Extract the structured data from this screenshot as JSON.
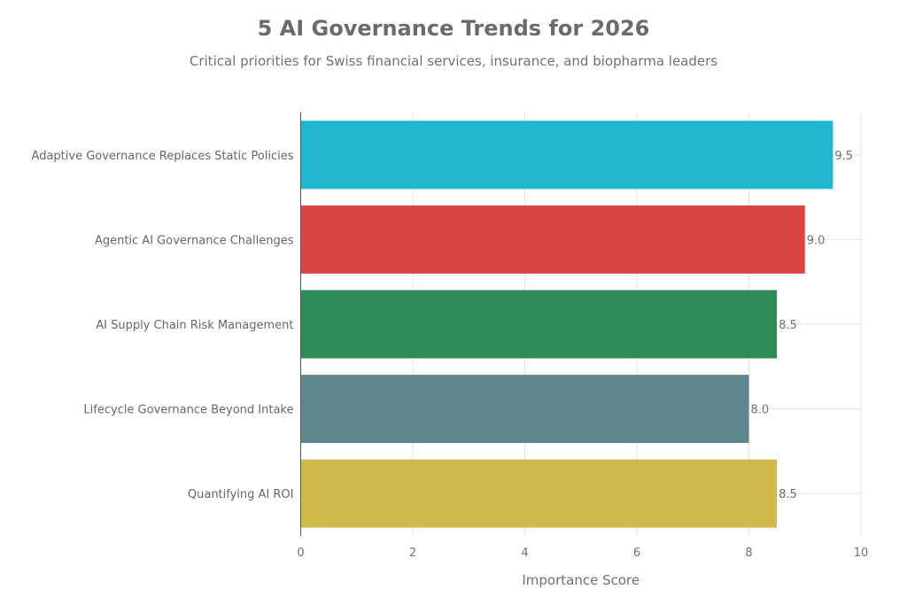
{
  "chart_data": {
    "type": "bar",
    "orientation": "horizontal",
    "title": "5 AI Governance Trends for 2026",
    "subtitle": "Critical priorities for Swiss financial services, insurance, and biopharma leaders",
    "xlabel": "Importance Score",
    "ylabel": "",
    "xlim": [
      0,
      10
    ],
    "xticks": [
      0,
      2,
      4,
      6,
      8,
      10
    ],
    "grid": true,
    "legend": "none",
    "categories": [
      "Adaptive Governance Replaces Static Policies",
      "Agentic AI Governance Challenges",
      "AI Supply Chain Risk Management",
      "Lifecycle Governance Beyond Intake",
      "Quantifying AI ROI"
    ],
    "values": [
      9.5,
      9.0,
      8.5,
      8.0,
      8.5
    ],
    "value_labels": [
      "9.5",
      "9.0",
      "8.5",
      "8.0",
      "8.5"
    ],
    "colors": [
      "#21b8cf",
      "#db4545",
      "#2e8b57",
      "#5e868c",
      "#d2b94b"
    ]
  }
}
